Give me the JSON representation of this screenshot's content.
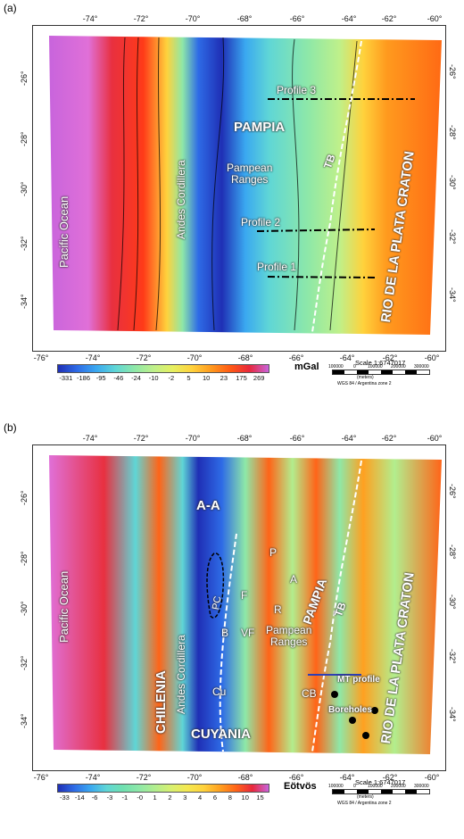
{
  "panels": [
    {
      "label": "(a)",
      "lon_ticks_top": [
        "-74°",
        "-72°",
        "-70°",
        "-68°",
        "-66°",
        "-64°",
        "-62°",
        "-60°"
      ],
      "lon_ticks_bottom": [
        "-76°",
        "-74°",
        "-72°",
        "-70°",
        "-68°",
        "-66°",
        "-64°",
        "-62°",
        "-60°"
      ],
      "lat_ticks": [
        "-26°",
        "-28°",
        "-30°",
        "-32°",
        "-34°"
      ],
      "labels": {
        "pacific": "Pacific Ocean",
        "andes": "Andes Cordillera",
        "pampia": "PAMPIA",
        "pampean": "Pampean\nRanges",
        "tb": "TB",
        "rio": "RIO DE LA PLATA CRATON",
        "profile3": "Profile 3",
        "profile2": "Profile 2",
        "profile1": "Profile 1"
      },
      "colorbar": {
        "values": [
          "-331",
          "-186",
          "-95",
          "-46",
          "-24",
          "-10",
          "-2",
          "5",
          "10",
          "23",
          "175",
          "269"
        ],
        "unit": "mGal",
        "colors": [
          "#1f2fb5",
          "#2e6be6",
          "#3aa8f0",
          "#5fd6d6",
          "#8ee8a8",
          "#bff08a",
          "#e6f060",
          "#ffd23c",
          "#ff9a1e",
          "#ff5a14",
          "#e8283c",
          "#c864dc"
        ]
      },
      "scale": {
        "title": "Scale 1:6747017",
        "ticks": [
          "100000",
          "0",
          "100000",
          "200000",
          "300000"
        ],
        "units": "(meters)",
        "projection": "WGS 84 / Argentina zone 2"
      }
    },
    {
      "label": "(b)",
      "lon_ticks_top": [
        "-74°",
        "-72°",
        "-70°",
        "-68°",
        "-66°",
        "-64°",
        "-62°",
        "-60°"
      ],
      "lon_ticks_bottom": [
        "-76°",
        "-74°",
        "-72°",
        "-70°",
        "-68°",
        "-66°",
        "-64°",
        "-62°",
        "-60°"
      ],
      "lat_ticks": [
        "-26°",
        "-28°",
        "-30°",
        "-32°",
        "-34°"
      ],
      "labels": {
        "pacific": "Pacific Ocean",
        "chilenia": "CHILENIA",
        "andes": "Andes Cordillera",
        "aa": "A-A",
        "cuyania": "CUYANIA",
        "pampia": "PAMPIA",
        "pampean": "Pampean\nRanges",
        "tb": "TB",
        "rio": "RIO DE LA PLATA CRATON",
        "p": "P",
        "a": "A",
        "f": "F",
        "r": "R",
        "pc": "PC",
        "b": "B",
        "vf": "VF",
        "cu": "Cu",
        "cb": "CB",
        "mt": "MT profile",
        "boreholes": "Boreholes"
      },
      "colorbar": {
        "values": [
          "-33",
          "-14",
          "-6",
          "-3",
          "-1",
          "-0",
          "1",
          "2",
          "3",
          "4",
          "6",
          "8",
          "10",
          "15"
        ],
        "unit": "Eötvös",
        "colors": [
          "#1f2fb5",
          "#2e6be6",
          "#3aa8f0",
          "#5fd6d6",
          "#6fe0b0",
          "#8ee8a8",
          "#b2ee8e",
          "#d8f070",
          "#f4e850",
          "#ffd23c",
          "#ffa020",
          "#ff6418",
          "#e8283c",
          "#c864dc"
        ]
      },
      "scale": {
        "title": "Scale 1:6747017",
        "ticks": [
          "100000",
          "0",
          "100000",
          "200000",
          "300000"
        ],
        "units": "(meters)",
        "projection": "WGS 84 / Argentina zone 2"
      }
    }
  ]
}
